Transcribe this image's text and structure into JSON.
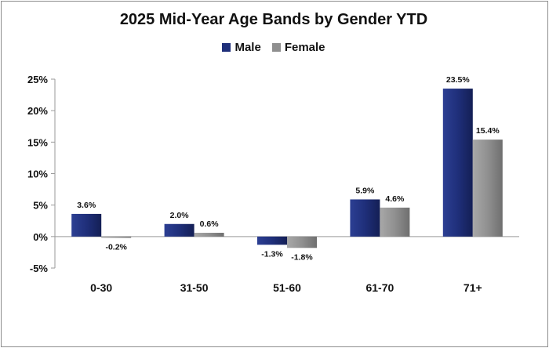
{
  "chart_data": {
    "type": "bar",
    "title": "2025 Mid-Year Age Bands by Gender YTD",
    "categories": [
      "0-30",
      "31-50",
      "51-60",
      "61-70",
      "71+"
    ],
    "series": [
      {
        "name": "Male",
        "values": [
          3.6,
          2.0,
          -1.3,
          5.9,
          23.5
        ],
        "labels": [
          "3.6%",
          "2.0%",
          "-1.3%",
          "5.9%",
          "23.5%"
        ],
        "color": "#1f2f7a"
      },
      {
        "name": "Female",
        "values": [
          -0.2,
          0.6,
          -1.8,
          4.6,
          15.4
        ],
        "labels": [
          "-0.2%",
          "0.6%",
          "-1.8%",
          "4.6%",
          "15.4%"
        ],
        "color": "#8f8f8f"
      }
    ],
    "yticks": [
      "25%",
      "20%",
      "15%",
      "10%",
      "5%",
      "0%",
      "-5%"
    ],
    "ylim": [
      -5,
      25
    ],
    "legend_position": "top",
    "grid": false
  }
}
